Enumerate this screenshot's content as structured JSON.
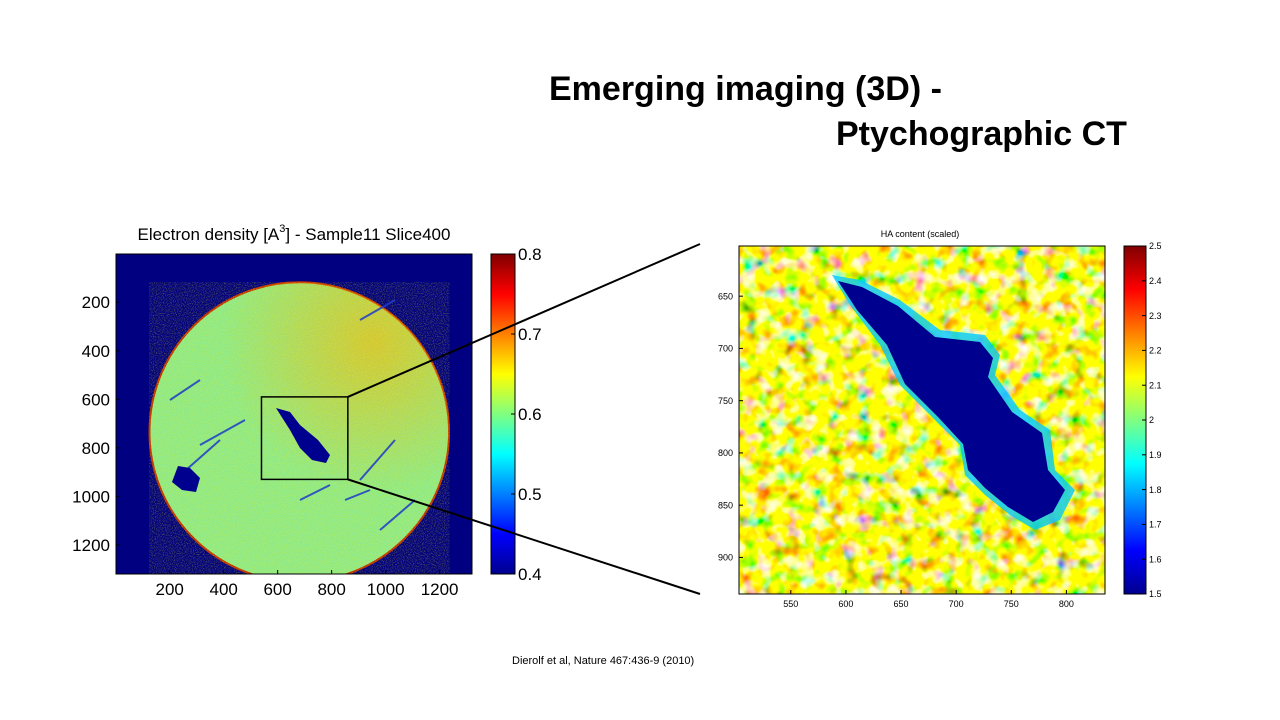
{
  "slide": {
    "title_line1": "Emerging imaging (3D) -",
    "title_line2": "Ptychographic CT",
    "citation": "Dierolf et al, Nature 467:436-9 (2010)"
  },
  "colors": {
    "background": "#000080",
    "cmap": [
      "#00008f",
      "#0000ff",
      "#00ffff",
      "#80ff80",
      "#ffff00",
      "#ff7f00",
      "#ff0000",
      "#800000"
    ]
  },
  "chart_data": [
    {
      "type": "heatmap",
      "title_prefix": "Electron density [A",
      "title_sup": "3",
      "title_suffix": "] - Sample11 Slice400",
      "x_ticks": [
        200,
        400,
        600,
        800,
        1000,
        1200
      ],
      "y_ticks": [
        200,
        400,
        600,
        800,
        1000,
        1200
      ],
      "xlim": [
        1,
        1320
      ],
      "ylim": [
        1,
        1320
      ],
      "colorbar": {
        "min": 0.4,
        "max": 0.8,
        "ticks": [
          "0.4",
          "0.5",
          "0.6",
          "0.7",
          "0.8"
        ]
      },
      "sample_circle": {
        "cx": 680,
        "cy": 735,
        "r": 555
      },
      "zoom_box": {
        "x0": 540,
        "x1": 860,
        "y0": 590,
        "y1": 930
      }
    },
    {
      "type": "heatmap",
      "title": "HA content (scaled)",
      "x_ticks": [
        550,
        600,
        650,
        700,
        750,
        800
      ],
      "y_ticks": [
        650,
        700,
        750,
        800,
        850,
        900
      ],
      "xlim": [
        503,
        835
      ],
      "ylim": [
        602,
        935
      ],
      "colorbar": {
        "min": 1.5,
        "max": 2.5,
        "ticks": [
          "1.5",
          "1.6",
          "1.7",
          "1.8",
          "1.9",
          "2",
          "2.1",
          "2.2",
          "2.3",
          "2.4",
          "2.5"
        ]
      }
    }
  ]
}
